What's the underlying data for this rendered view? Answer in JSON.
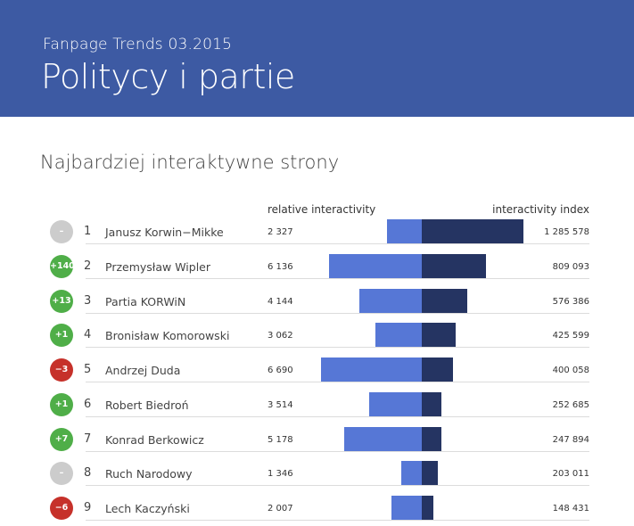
{
  "header": {
    "subtitle": "Fanpage Trends 03.2015",
    "title": "Politycy i partie"
  },
  "section_title": "Najbardziej interaktywne strony",
  "columns": {
    "relative": "relative interactivity",
    "index": "interactivity index"
  },
  "colors": {
    "header_bg": "#3d5aa3",
    "relative_bar": "#5677d6",
    "index_bar": "#253462",
    "badge_up": "#4fae48",
    "badge_down": "#c6312a",
    "badge_neutral": "#cccccc"
  },
  "chart_data": {
    "type": "bar",
    "categories": [
      "Janusz Korwin−Mikke",
      "Przemysław Wipler",
      "Partia KORWiN",
      "Bronisław Komorowski",
      "Andrzej Duda",
      "Robert Biedroń",
      "Konrad Berkowicz",
      "Ruch Narodowy",
      "Lech Kaczyński"
    ],
    "series": [
      {
        "name": "relative interactivity",
        "values": [
          2327,
          6136,
          4144,
          3062,
          6690,
          3514,
          5178,
          1346,
          2007
        ]
      },
      {
        "name": "interactivity index",
        "values": [
          1285578,
          809093,
          576386,
          425599,
          400058,
          252685,
          247894,
          203011,
          148431
        ]
      }
    ]
  },
  "rows": [
    {
      "rank": "1",
      "change": "–",
      "trend": "neutral",
      "name": "Janusz Korwin−Mikke",
      "rel_text": "2 327",
      "idx_text": "1 285 578"
    },
    {
      "rank": "2",
      "change": "+140",
      "trend": "up",
      "name": "Przemysław Wipler",
      "rel_text": "6 136",
      "idx_text": "809 093"
    },
    {
      "rank": "3",
      "change": "+13",
      "trend": "up",
      "name": "Partia KORWiN",
      "rel_text": "4 144",
      "idx_text": "576 386"
    },
    {
      "rank": "4",
      "change": "+1",
      "trend": "up",
      "name": "Bronisław Komorowski",
      "rel_text": "3 062",
      "idx_text": "425 599"
    },
    {
      "rank": "5",
      "change": "−3",
      "trend": "down",
      "name": "Andrzej Duda",
      "rel_text": "6 690",
      "idx_text": "400 058"
    },
    {
      "rank": "6",
      "change": "+1",
      "trend": "up",
      "name": "Robert Biedroń",
      "rel_text": "3 514",
      "idx_text": "252 685"
    },
    {
      "rank": "7",
      "change": "+7",
      "trend": "up",
      "name": "Konrad Berkowicz",
      "rel_text": "5 178",
      "idx_text": "247 894"
    },
    {
      "rank": "8",
      "change": "–",
      "trend": "neutral",
      "name": "Ruch Narodowy",
      "rel_text": "1 346",
      "idx_text": "203 011"
    },
    {
      "rank": "9",
      "change": "−6",
      "trend": "down",
      "name": "Lech Kaczyński",
      "rel_text": "2 007",
      "idx_text": "148 431"
    }
  ]
}
